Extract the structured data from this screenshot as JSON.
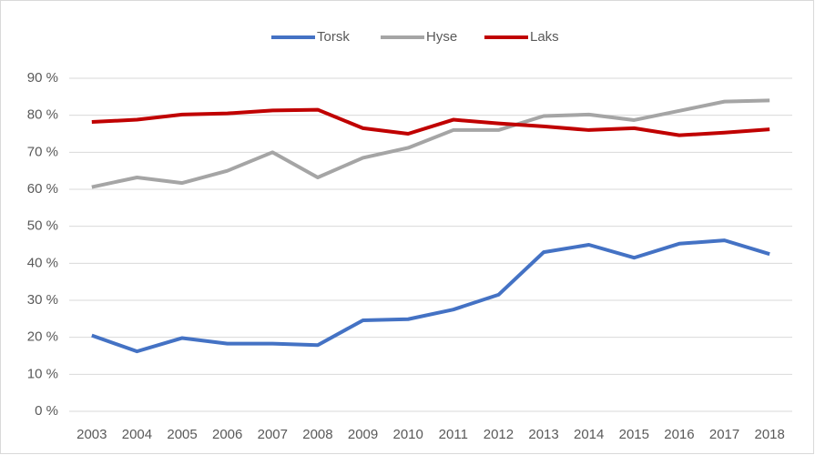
{
  "chart_data": {
    "type": "line",
    "categories": [
      "2003",
      "2004",
      "2005",
      "2006",
      "2007",
      "2008",
      "2009",
      "2010",
      "2011",
      "2012",
      "2013",
      "2014",
      "2015",
      "2016",
      "2017",
      "2018"
    ],
    "series": [
      {
        "name": "Torsk",
        "color": "#4472c4",
        "values": [
          20.5,
          16.2,
          19.8,
          18.3,
          18.3,
          17.9,
          24.6,
          24.9,
          27.5,
          31.5,
          43,
          45,
          41.5,
          45.3,
          46.2,
          42.5
        ]
      },
      {
        "name": "Hyse",
        "color": "#a5a5a5",
        "values": [
          60.6,
          63.2,
          61.7,
          65,
          70,
          63.2,
          68.5,
          71.2,
          76,
          76,
          79.8,
          80.2,
          78.7,
          81.2,
          83.7,
          84
        ]
      },
      {
        "name": "Laks",
        "color": "#c00000",
        "values": [
          78.2,
          78.8,
          80.2,
          80.5,
          81.3,
          81.5,
          76.5,
          75,
          78.8,
          77.8,
          77,
          76,
          76.5,
          74.6,
          75.3,
          76.2
        ]
      }
    ],
    "ylim": [
      0,
      90
    ],
    "yticks": [
      {
        "value": 0,
        "label": "0 %"
      },
      {
        "value": 10,
        "label": "10 %"
      },
      {
        "value": 20,
        "label": "20 %"
      },
      {
        "value": 30,
        "label": "30 %"
      },
      {
        "value": 40,
        "label": "40 %"
      },
      {
        "value": 50,
        "label": "50 %"
      },
      {
        "value": 60,
        "label": "60 %"
      },
      {
        "value": 70,
        "label": "70 %"
      },
      {
        "value": 80,
        "label": "80 %"
      },
      {
        "value": 90,
        "label": "90 %"
      }
    ],
    "grid": true,
    "legend": "top"
  }
}
